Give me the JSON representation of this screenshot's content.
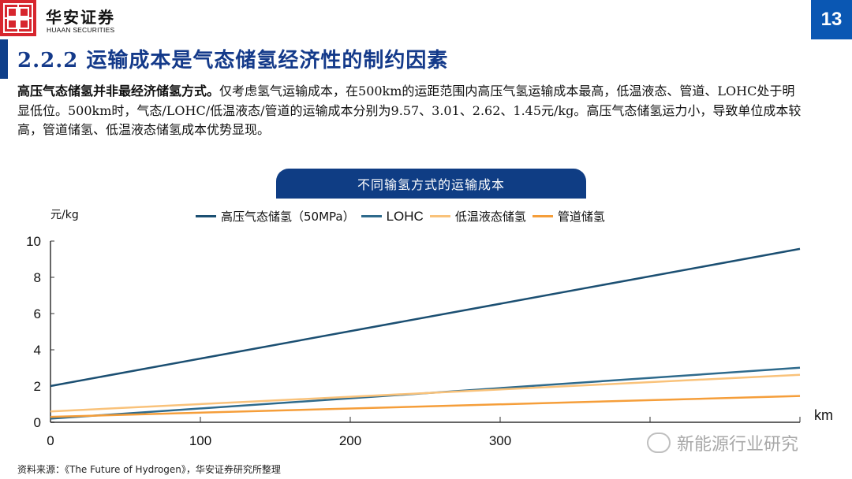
{
  "header": {
    "logo_cn": "华安证券",
    "logo_en": "HUAAN SECURITIES",
    "page_number": "13",
    "brand_color": "#d7262e",
    "accent_color": "#0a57b3"
  },
  "section": {
    "title": "2.2.2 运输成本是气态储氢经济性的制约因素"
  },
  "body": {
    "bold_lead": "高压气态储氢并非最经济储氢方式。",
    "text": "仅考虑氢气运输成本，在500km的运距范围内高压气氢运输成本最高，低温液态、管道、LOHC处于明显低位。500km时，气态/LOHC/低温液态/管道的运输成本分别为9.57、3.01、2.62、1.45元/kg。高压气态储氢运力小，导致单位成本较高，管道储氢、低温液态储氢成本优势显现。"
  },
  "chart_data": {
    "type": "line",
    "title": "不同输氢方式的运输成本",
    "xlabel": "km",
    "ylabel": "元/kg",
    "xlim": [
      0,
      500
    ],
    "ylim": [
      0,
      10
    ],
    "x_ticks": [
      0,
      100,
      200,
      300,
      400,
      500
    ],
    "x_tick_labels": [
      "0",
      "100",
      "200",
      "300",
      "",
      ""
    ],
    "y_ticks": [
      0,
      2,
      4,
      6,
      8,
      10
    ],
    "grid": false,
    "legend_position": "top",
    "x": [
      0,
      500
    ],
    "series": [
      {
        "name": "高压气态储氢（50MPa）",
        "color": "#1b4f72",
        "values": [
          2.0,
          9.57
        ]
      },
      {
        "name": "LOHC",
        "color": "#2e6a8c",
        "values": [
          0.2,
          3.01
        ]
      },
      {
        "name": "低温液态储氢",
        "color": "#f9c27a",
        "values": [
          0.6,
          2.62
        ]
      },
      {
        "name": "管道储氢",
        "color": "#f59e3a",
        "values": [
          0.3,
          1.45
        ]
      }
    ]
  },
  "watermark": {
    "text": "新能源行业研究"
  },
  "footer": {
    "source": "资料来源：《The Future of Hydrogen》，华安证券研究所整理"
  }
}
